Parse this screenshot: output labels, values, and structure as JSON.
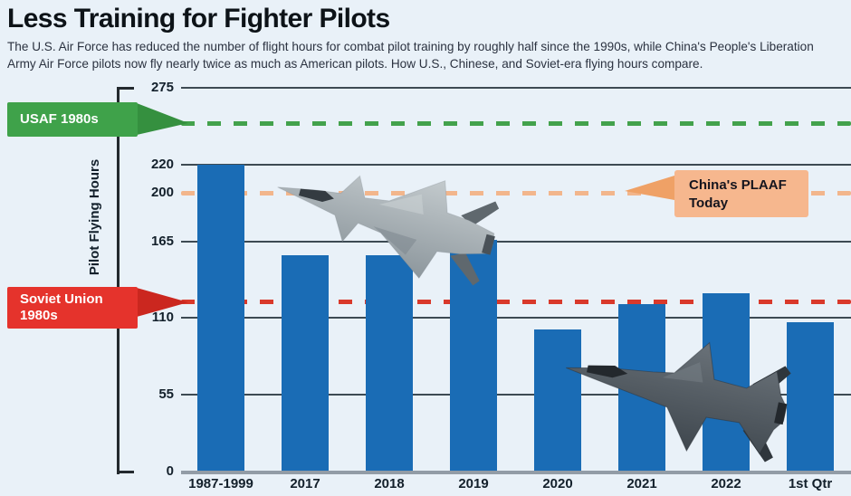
{
  "page": {
    "background": "#e9f1f8"
  },
  "header": {
    "title": "Less Training for Fighter Pilots",
    "subtitle": "The U.S. Air Force has reduced the number of flight hours for combat pilot training by roughly half since the 1990s, while China's People's Liberation Army Air Force pilots now fly nearly twice as much as American pilots. How U.S., Chinese, and Soviet-era flying hours compare."
  },
  "chart_data": {
    "type": "bar",
    "title": "Less Training for Fighter Pilots",
    "ylabel": "Pilot Flying Hours",
    "xlabel": "",
    "categories": [
      "1987-1999",
      "2017",
      "2018",
      "2019",
      "2020",
      "2021",
      "2022",
      "1st Qtr"
    ],
    "values": [
      220,
      155,
      155,
      166,
      102,
      120,
      128,
      107
    ],
    "ylim": [
      0,
      275
    ],
    "yticks": [
      0,
      55,
      110,
      165,
      200,
      220,
      275
    ],
    "gridline_ticks": [
      55,
      110,
      165,
      220,
      275
    ],
    "grid": "horizontal",
    "legend_position": "callout-flags",
    "bar_color": "#1a6cb5",
    "grid_color": "#3d4a53",
    "axis_color": "#929ca6",
    "reference_lines": [
      {
        "id": "usaf",
        "label": "USAF 1980s",
        "value": 250,
        "color": "#43a24c",
        "style": "dashed"
      },
      {
        "id": "plaaf",
        "label": "China's PLAAF Today",
        "value": 200,
        "color": "#f2b68c",
        "style": "dashed"
      },
      {
        "id": "soviet",
        "label": "Soviet Union 1980s",
        "value": 122,
        "color": "#d9392b",
        "style": "dashed"
      }
    ]
  },
  "annotations": {
    "usaf": {
      "label": "USAF 1980s",
      "color": "#3fa24a"
    },
    "soviet": {
      "line1": "Soviet Union",
      "line2": "1980s",
      "color": "#e5332c"
    },
    "plaaf": {
      "line1": "China's PLAAF",
      "line2": "Today",
      "color": "#f6b78e"
    }
  },
  "icons": {
    "jet_top": "j20-fighter-jet",
    "jet_bottom": "f35-fighter-jet"
  }
}
